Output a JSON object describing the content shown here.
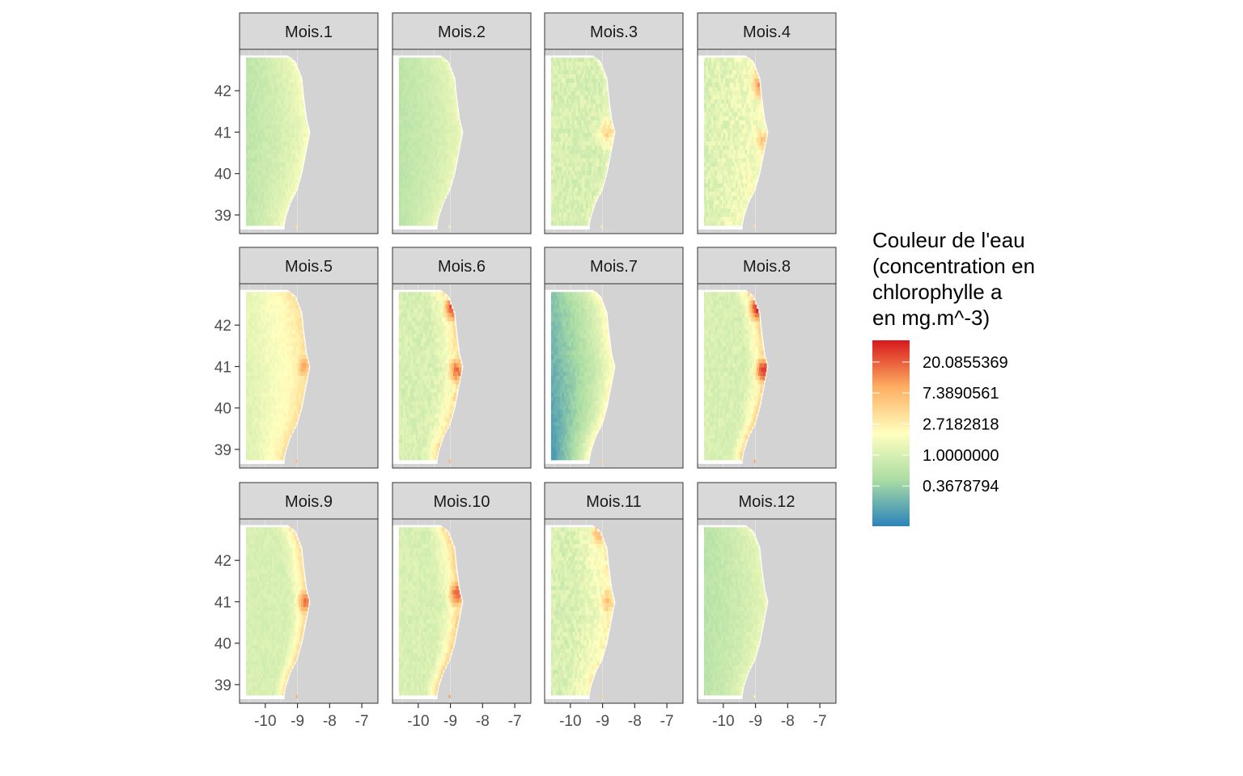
{
  "chart_data": {
    "type": "heatmap",
    "title": "",
    "xlabel": "",
    "ylabel": "",
    "xlim": [
      -10.8,
      -6.5
    ],
    "ylim": [
      38.55,
      43.0
    ],
    "x_ticks": [
      -10,
      -9,
      -8,
      -7
    ],
    "x_tick_labels": [
      "-10",
      "-9",
      "-8",
      "-7"
    ],
    "y_ticks": [
      39,
      40,
      41,
      42
    ],
    "y_tick_labels": [
      "39",
      "40",
      "41",
      "42"
    ],
    "panel_grid": {
      "rows": 3,
      "cols": 4
    },
    "land_color": "#d3d3d3",
    "coastline": [
      {
        "lat": 42.85,
        "lon": -9.35
      },
      {
        "lat": 42.7,
        "lon": -9.1
      },
      {
        "lat": 42.3,
        "lon": -8.9
      },
      {
        "lat": 41.9,
        "lon": -8.85
      },
      {
        "lat": 41.3,
        "lon": -8.75
      },
      {
        "lat": 41.0,
        "lon": -8.65
      },
      {
        "lat": 40.6,
        "lon": -8.75
      },
      {
        "lat": 40.0,
        "lon": -8.9
      },
      {
        "lat": 39.6,
        "lon": -9.05
      },
      {
        "lat": 39.3,
        "lon": -9.25
      },
      {
        "lat": 38.95,
        "lon": -9.4
      },
      {
        "lat": 38.75,
        "lon": -9.45
      }
    ],
    "data_extent": {
      "lon_min": -10.6,
      "lat_min": 38.75,
      "lat_max": 42.8
    },
    "grid_resolution": {
      "nx": 26,
      "ny": 40
    },
    "legend": {
      "title_lines": [
        "Couleur de l'eau",
        "(concentration en",
        "chlorophylle a",
        "en mg.m^-3)"
      ],
      "scale": "log",
      "colormap": "Spectral",
      "colors": [
        "#2b83ba",
        "#abdda4",
        "#ffffbf",
        "#fdae61",
        "#d7191c"
      ],
      "log_range": [
        -2.3,
        3.7
      ],
      "breaks_log": [
        3,
        2,
        1,
        0,
        -1
      ],
      "labels": [
        "20.0855369",
        "7.3890561",
        "2.7182818",
        "1.0000000",
        "0.3678794"
      ],
      "placement": "right"
    },
    "panels": [
      {
        "label": "Mois.1",
        "offshore": -0.45,
        "coastal": 0.65,
        "north_gradient": 0.0,
        "spots": [],
        "noise": 0.15
      },
      {
        "label": "Mois.2",
        "offshore": -0.5,
        "coastal": 0.45,
        "north_gradient": 0.0,
        "spots": [],
        "noise": 0.12
      },
      {
        "label": "Mois.3",
        "offshore": -1.05,
        "coastal": 0.45,
        "north_gradient": 0.0,
        "spots": [
          {
            "lat": 41.0,
            "lon": -8.85,
            "value": 1.5
          }
        ],
        "noise": 0.3
      },
      {
        "label": "Mois.4",
        "offshore": 0.05,
        "coastal": 0.7,
        "north_gradient": 0.0,
        "spots": [
          {
            "lat": 42.15,
            "lon": -8.9,
            "value": 2.3
          },
          {
            "lat": 40.8,
            "lon": -8.8,
            "value": 1.6
          }
        ],
        "noise": 0.35
      },
      {
        "label": "Mois.5",
        "offshore": 0.15,
        "coastal": 1.4,
        "north_gradient": 0.1,
        "spots": [
          {
            "lat": 41.0,
            "lon": -8.8,
            "value": 2.2
          },
          {
            "lat": 38.8,
            "lon": -9.0,
            "value": 2.5
          }
        ],
        "noise": 0.15
      },
      {
        "label": "Mois.6",
        "offshore": -0.9,
        "coastal": 1.5,
        "north_gradient": 0.0,
        "spots": [
          {
            "lat": 42.4,
            "lon": -8.95,
            "value": 3.2
          },
          {
            "lat": 40.9,
            "lon": -8.8,
            "value": 2.8
          }
        ],
        "noise": 0.25
      },
      {
        "label": "Mois.7",
        "offshore": -1.6,
        "coastal": 1.1,
        "north_gradient": 0.4,
        "spots": [],
        "noise": 0.15
      },
      {
        "label": "Mois.8",
        "offshore": -1.45,
        "coastal": 1.7,
        "north_gradient": 0.2,
        "spots": [
          {
            "lat": 42.4,
            "lon": -8.95,
            "value": 3.5
          },
          {
            "lat": 40.9,
            "lon": -8.75,
            "value": 3.4
          },
          {
            "lat": 38.8,
            "lon": -9.0,
            "value": 3.2
          }
        ],
        "noise": 0.2
      },
      {
        "label": "Mois.9",
        "offshore": -1.5,
        "coastal": 1.6,
        "north_gradient": 0.5,
        "spots": [
          {
            "lat": 41.0,
            "lon": -8.75,
            "value": 2.8
          }
        ],
        "noise": 0.15
      },
      {
        "label": "Mois.10",
        "offshore": -1.45,
        "coastal": 1.8,
        "north_gradient": 0.4,
        "spots": [
          {
            "lat": 41.2,
            "lon": -8.8,
            "value": 3.0
          }
        ],
        "noise": 0.18
      },
      {
        "label": "Mois.11",
        "offshore": -0.3,
        "coastal": 1.1,
        "north_gradient": 0.0,
        "spots": [
          {
            "lat": 41.0,
            "lon": -8.85,
            "value": 1.8
          },
          {
            "lat": 42.65,
            "lon": -9.1,
            "value": 2.0
          }
        ],
        "noise": 0.3
      },
      {
        "label": "Mois.12",
        "offshore": -0.55,
        "coastal": 0.4,
        "north_gradient": 0.0,
        "spots": [],
        "noise": 0.15
      }
    ]
  }
}
